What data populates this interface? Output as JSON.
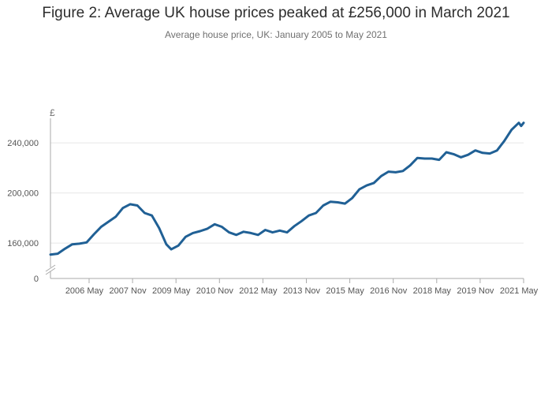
{
  "title": "Figure 2: Average UK house prices peaked at £256,000 in March 2021",
  "subtitle": "Average house price, UK: January 2005 to May 2021",
  "chart_data": {
    "type": "line",
    "title": "Figure 2: Average UK house prices peaked at £256,000 in March 2021",
    "subtitle": "Average house price, UK: January 2005 to May 2021",
    "y_unit_label": "£",
    "ylabel": "",
    "xlabel": "",
    "y_axis_break": true,
    "ylim": [
      0,
      260000
    ],
    "y_ticks": [
      {
        "value": 0,
        "label": "0"
      },
      {
        "value": 160000,
        "label": "160,000"
      },
      {
        "value": 200000,
        "label": "200,000"
      },
      {
        "value": 240000,
        "label": "240,000"
      }
    ],
    "x_ticks": [
      "2006 May",
      "2007 Nov",
      "2009 May",
      "2010 Nov",
      "2012 May",
      "2013 Nov",
      "2015 May",
      "2016 Nov",
      "2018 May",
      "2019 Nov",
      "2021 May"
    ],
    "grid": "horizontal",
    "line_color": "#206095",
    "series": [
      {
        "x": [
          "2005-01",
          "2005-04",
          "2005-07",
          "2005-10",
          "2006-01",
          "2006-04",
          "2006-07",
          "2006-10",
          "2007-01",
          "2007-04",
          "2007-07",
          "2007-10",
          "2008-01",
          "2008-04",
          "2008-07",
          "2008-10",
          "2009-01",
          "2009-03",
          "2009-06",
          "2009-09",
          "2009-12",
          "2010-03",
          "2010-06",
          "2010-09",
          "2010-12",
          "2011-03",
          "2011-06",
          "2011-09",
          "2011-12",
          "2012-03",
          "2012-06",
          "2012-09",
          "2012-12",
          "2013-03",
          "2013-06",
          "2013-09",
          "2013-12",
          "2014-03",
          "2014-06",
          "2014-09",
          "2014-12",
          "2015-03",
          "2015-06",
          "2015-09",
          "2015-12",
          "2016-03",
          "2016-06",
          "2016-09",
          "2016-12",
          "2017-03",
          "2017-06",
          "2017-09",
          "2017-12",
          "2018-03",
          "2018-06",
          "2018-09",
          "2018-12",
          "2019-03",
          "2019-06",
          "2019-09",
          "2019-12",
          "2020-03",
          "2020-06",
          "2020-09",
          "2020-12",
          "2021-03",
          "2021-04",
          "2021-05"
        ],
        "values": [
          150800,
          151500,
          155500,
          159000,
          159500,
          160500,
          167000,
          173000,
          177000,
          181000,
          188000,
          191000,
          190000,
          184000,
          182000,
          172000,
          159000,
          155000,
          158000,
          165000,
          168000,
          169500,
          171500,
          175000,
          173000,
          168500,
          166500,
          169000,
          168000,
          166500,
          170500,
          168500,
          170000,
          168500,
          173500,
          177500,
          182000,
          184000,
          190000,
          193000,
          192500,
          191500,
          196000,
          203000,
          206000,
          208000,
          213500,
          217000,
          216500,
          217500,
          222000,
          228000,
          227500,
          227500,
          226500,
          232500,
          231000,
          228500,
          230500,
          234000,
          232000,
          231500,
          234000,
          241500,
          250500,
          256000,
          253500,
          256000
        ]
      }
    ]
  }
}
